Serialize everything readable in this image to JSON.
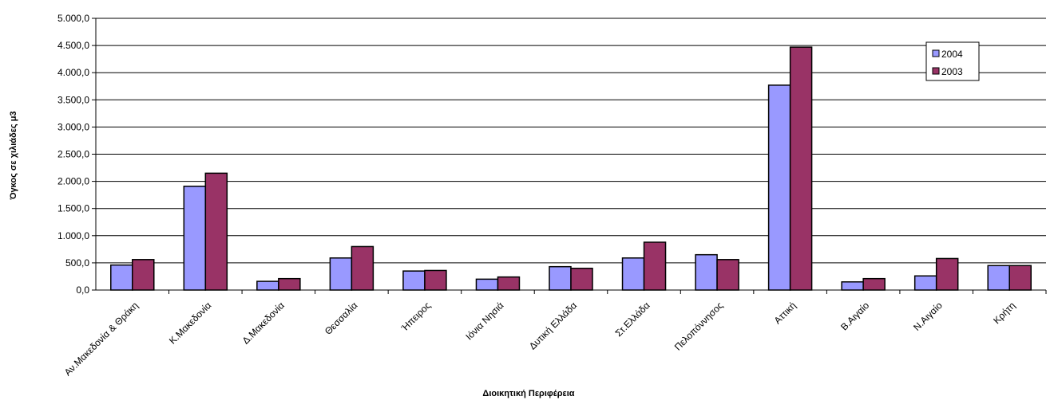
{
  "chart_data": {
    "type": "bar",
    "title": "",
    "xlabel": "Διοικητική Περιφέρεια",
    "ylabel": "Όγκος σε χιλιάδες μ3",
    "ylim": [
      0,
      5000
    ],
    "ytick_step": 500,
    "yticks": [
      "0,0",
      "500,0",
      "1.000,0",
      "1.500,0",
      "2.000,0",
      "2.500,0",
      "3.000,0",
      "3.500,0",
      "4.000,0",
      "4.500,0",
      "5.000,0"
    ],
    "grid": true,
    "legend_position": "top-right",
    "categories": [
      "Αν.Μακεδονία & Θράκη",
      "Κ.Μακεδονία",
      "Δ.Μακεδονία",
      "Θεσσαλία",
      "Ήπειρος",
      "Ιόνια Νησιά",
      "Δυτική Ελλάδα",
      "Στ.Ελλάδα",
      "Πελοπόννησος",
      "Αττική",
      "Β.Αιγαίο",
      "Ν.Αιγαίο",
      "Κρήτη"
    ],
    "series": [
      {
        "name": "2004",
        "color": "#9999ff",
        "values": [
          460,
          1910,
          160,
          590,
          350,
          200,
          430,
          590,
          650,
          3770,
          150,
          260,
          450
        ]
      },
      {
        "name": "2003",
        "color": "#993366",
        "values": [
          560,
          2150,
          210,
          800,
          360,
          240,
          400,
          880,
          560,
          4470,
          210,
          580,
          450
        ]
      }
    ]
  }
}
